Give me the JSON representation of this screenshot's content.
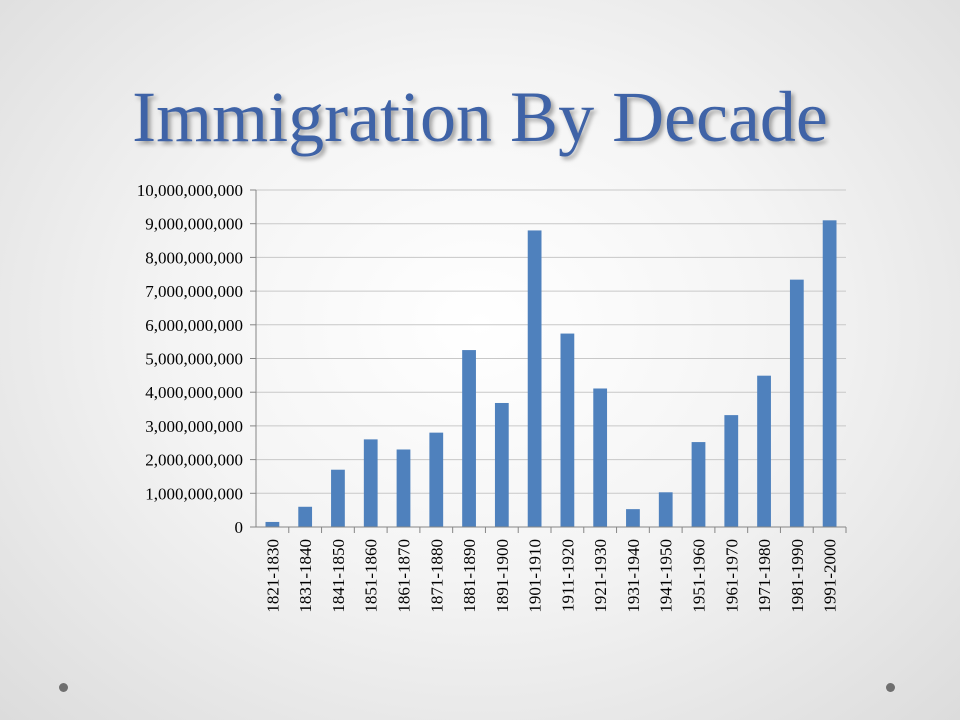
{
  "slide": {
    "title": "Immigration By Decade"
  },
  "chart_data": {
    "type": "bar",
    "title": "",
    "xlabel": "",
    "ylabel": "",
    "ylim": [
      0,
      10000000000
    ],
    "y_ticks": [
      0,
      1000000000,
      2000000000,
      3000000000,
      4000000000,
      5000000000,
      6000000000,
      7000000000,
      8000000000,
      9000000000,
      10000000000
    ],
    "y_tick_labels": [
      "0",
      "1,000,000,000",
      "2,000,000,000",
      "3,000,000,000",
      "4,000,000,000",
      "5,000,000,000",
      "6,000,000,000",
      "7,000,000,000",
      "8,000,000,000",
      "9,000,000,000",
      "10,000,000,000"
    ],
    "categories": [
      "1821-1830",
      "1831-1840",
      "1841-1850",
      "1851-1860",
      "1861-1870",
      "1871-1880",
      "1881-1890",
      "1891-1900",
      "1901-1910",
      "1911-1920",
      "1921-1930",
      "1931-1940",
      "1941-1950",
      "1951-1960",
      "1961-1970",
      "1971-1980",
      "1981-1990",
      "1991-2000"
    ],
    "values": [
      150000000,
      600000000,
      1700000000,
      2600000000,
      2300000000,
      2800000000,
      5250000000,
      3680000000,
      8800000000,
      5740000000,
      4110000000,
      530000000,
      1030000000,
      2520000000,
      3320000000,
      4490000000,
      7340000000,
      9100000000
    ],
    "bar_color": "#4f81bd",
    "grid": true,
    "legend": "none"
  }
}
